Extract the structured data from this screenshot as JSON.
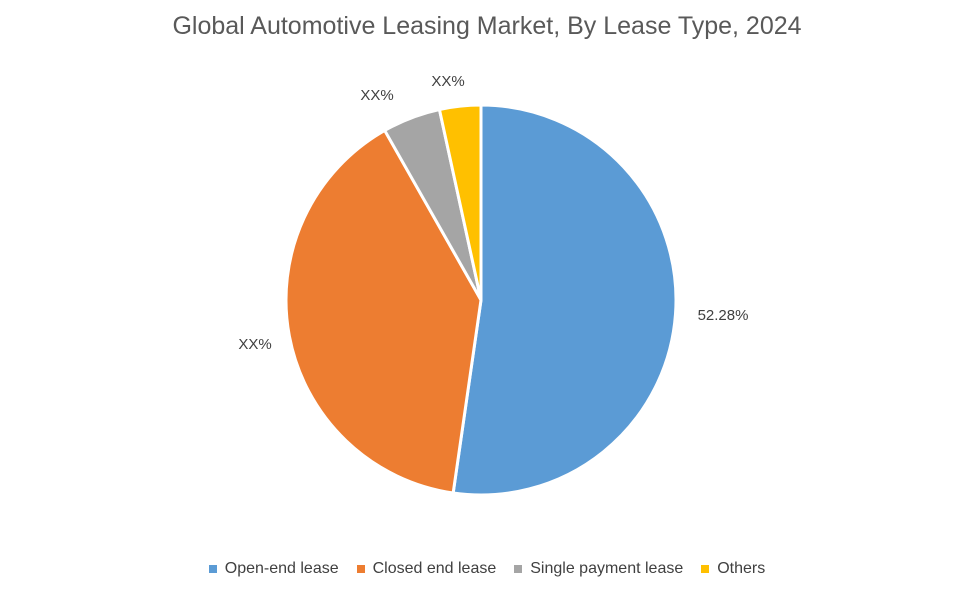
{
  "chart_data": {
    "type": "pie",
    "title": "Global Automotive Leasing Market, By Lease Type, 2024",
    "slices": [
      {
        "name": "Open-end lease",
        "value": 52.28,
        "label": "52.28%",
        "color": "#5B9BD5"
      },
      {
        "name": "Closed end lease",
        "value": 39.5,
        "label": "XX%",
        "color": "#ED7D31"
      },
      {
        "name": "Single payment lease",
        "value": 4.8,
        "label": "XX%",
        "color": "#A5A5A5"
      },
      {
        "name": "Others",
        "value": 3.42,
        "label": "XX%",
        "color": "#FFC000"
      }
    ],
    "legend_position": "bottom"
  }
}
